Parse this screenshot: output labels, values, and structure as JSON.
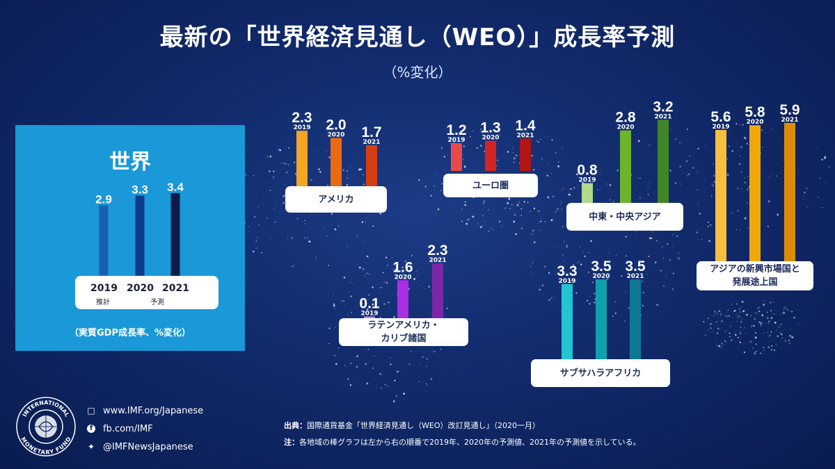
{
  "title": "最新の「世界経済見通し（WEO）」成長率予測",
  "subtitle": "（%変化）",
  "world_panel": {
    "title": "世界",
    "years": [
      "2019",
      "2020",
      "2021"
    ],
    "sub_estimate": "推計",
    "sub_forecast": "予測",
    "note": "（実質GDP成長率、%変化）"
  },
  "chart_data": {
    "type": "bar",
    "title": "最新の「世界経済見通し（WEO）」成長率予測",
    "ylabel": "%変化",
    "categories": [
      "2019",
      "2020",
      "2021"
    ],
    "series": [
      {
        "name": "世界",
        "values": [
          2.9,
          3.3,
          3.4
        ],
        "colors": [
          "#1b5fb5",
          "#0d3a8a",
          "#0b1c4a"
        ]
      },
      {
        "name": "アメリカ",
        "values": [
          2.3,
          2.0,
          1.7
        ],
        "colors": [
          "#f2a623",
          "#ea6a14",
          "#d43e10"
        ]
      },
      {
        "name": "ユーロ圏",
        "values": [
          1.2,
          1.3,
          1.4
        ],
        "colors": [
          "#e84a4a",
          "#d42424",
          "#b31414"
        ]
      },
      {
        "name": "中東・中央アジア",
        "values": [
          0.8,
          2.8,
          3.2
        ],
        "colors": [
          "#b4d88a",
          "#6cb42c",
          "#3f8526"
        ]
      },
      {
        "name": "アジアの新興市場国と発展途上国",
        "values": [
          5.6,
          5.8,
          5.9
        ],
        "colors": [
          "#f7bf3e",
          "#f0a70c",
          "#db8d0a"
        ]
      },
      {
        "name": "ラテンアメリカ・カリブ諸国",
        "values": [
          0.1,
          1.6,
          2.3
        ],
        "colors": [
          "#c885ee",
          "#a92ee4",
          "#7c27a8"
        ]
      },
      {
        "name": "サブサハラアフリカ",
        "values": [
          3.3,
          3.5,
          3.5
        ],
        "colors": [
          "#22c4d2",
          "#0ea1ad",
          "#0f7995"
        ]
      }
    ],
    "region_labels": [
      [
        "アメリカ"
      ],
      [
        "ユーロ圏"
      ],
      [
        "中東・中央アジア"
      ],
      [
        "アジアの新興市場国と",
        "発展途上国"
      ],
      [
        "ラテンアメリカ・",
        "カリブ諸国"
      ],
      [
        "サブサハラアフリカ"
      ]
    ]
  },
  "footer": {
    "website": "www.IMF.org/Japanese",
    "facebook": "fb.com/IMF",
    "twitter": "@IMFNewsJapanese",
    "source_label": "出典：",
    "source_text": "国際通貨基金「世界経済見通し（WEO）改訂見通し」（2020一月）",
    "note_label": "注：",
    "note_text": "各地域の棒グラフは左から右の順番で2019年、2020年の予測値、2021年の予測値を示している。",
    "logo_top_text": "INTERNATIONAL",
    "logo_bottom_text": "MONETARY FUND"
  },
  "colors": {
    "background": "#122c6e",
    "world_panel": "#1a98d8",
    "label_text": "#1a2a5a"
  }
}
